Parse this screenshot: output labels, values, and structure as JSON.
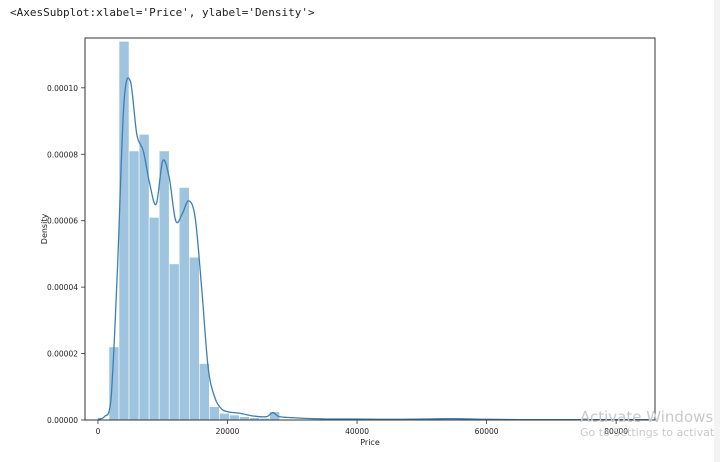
{
  "notebook": {
    "output_repr": "<AxesSubplot:xlabel='Price', ylabel='Density'>"
  },
  "watermark": {
    "title": "Activate Windows",
    "subtitle": "Go to Settings to activate Win"
  },
  "chart_data": {
    "type": "histogram",
    "xlabel": "Price",
    "ylabel": "Density",
    "xlim": [
      -2000,
      86000
    ],
    "ylim": [
      0,
      0.000115
    ],
    "xticks": [
      0,
      20000,
      40000,
      60000,
      80000
    ],
    "xtick_labels": [
      "0",
      "20000",
      "40000",
      "60000",
      "80000"
    ],
    "yticks": [
      0,
      2e-05,
      4e-05,
      6e-05,
      8e-05,
      0.0001
    ],
    "ytick_labels": [
      "0.00000",
      "0.00002",
      "0.00004",
      "0.00006",
      "0.00008",
      "0.00010"
    ],
    "grid": false,
    "bins": {
      "edges": [
        1700,
        3250,
        4800,
        6350,
        7900,
        9450,
        11000,
        12550,
        14100,
        15650,
        17200,
        18750,
        20300,
        21850,
        23400,
        24950,
        26500,
        28050
      ],
      "density": [
        2.2e-05,
        0.000114,
        8.1e-05,
        8.6e-05,
        6.1e-05,
        8.1e-05,
        4.7e-05,
        7e-05,
        4.9e-05,
        1.7e-05,
        4e-06,
        2e-06,
        1.5e-06,
        1e-06,
        7e-07,
        5e-07,
        2.5e-06
      ]
    },
    "kde": {
      "x": [
        0,
        1000,
        2000,
        3000,
        4000,
        5000,
        6000,
        7000,
        8000,
        9000,
        10000,
        11000,
        12000,
        13000,
        14000,
        15000,
        16000,
        17000,
        18000,
        19000,
        20000,
        22000,
        24000,
        26000,
        27000,
        28000,
        30000,
        32000,
        36000,
        40000,
        45000,
        50000,
        55000,
        60000,
        65000,
        70000,
        75000,
        80000,
        85000
      ],
      "y": [
        3e-07,
        1e-06,
        6e-06,
        4.5e-05,
        9.5e-05,
        0.000102,
        8.6e-05,
        8.1e-05,
        7.1e-05,
        6.5e-05,
        7.8e-05,
        7.3e-05,
        6e-05,
        6.2e-05,
        6.6e-05,
        6.1e-05,
        4e-05,
        1.6e-05,
        7e-06,
        3.5e-06,
        2.5e-06,
        2e-06,
        1.2e-06,
        1e-06,
        2.2e-06,
        1e-06,
        7e-07,
        5e-07,
        3e-07,
        3e-07,
        2e-07,
        3e-07,
        4e-07,
        2e-07,
        1e-07,
        1e-07,
        1e-07,
        1e-07,
        1e-07
      ]
    },
    "colors": {
      "bars": "#9ec4df",
      "kde": "#3c7fb6",
      "axes": "#333333"
    }
  }
}
